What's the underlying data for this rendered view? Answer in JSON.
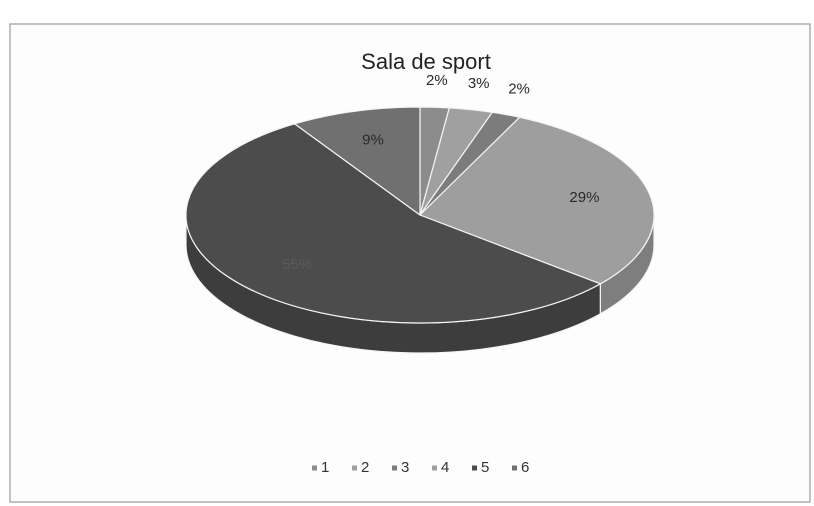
{
  "chart_data": {
    "type": "pie",
    "title": "Sala de sport",
    "categories": [
      "1",
      "2",
      "3",
      "4",
      "5",
      "6"
    ],
    "values": [
      2,
      3,
      2,
      29,
      55,
      9
    ],
    "value_labels": [
      "2%",
      "3%",
      "2%",
      "29%",
      "55%",
      "9%"
    ],
    "colors": [
      "#8c8c8c",
      "#a0a0a0",
      "#7c7c7c",
      "#9e9e9e",
      "#4c4c4c",
      "#707070"
    ],
    "legend": "bottom"
  }
}
